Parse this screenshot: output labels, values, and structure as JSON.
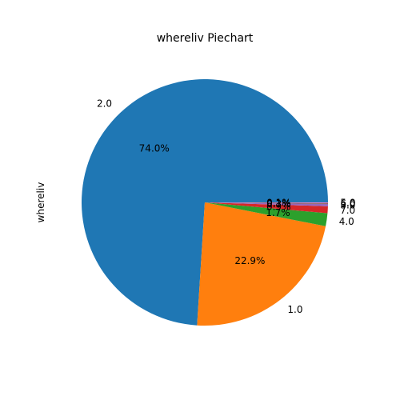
{
  "chart_data": {
    "type": "pie",
    "title": "whereliv Piechart",
    "ylabel": "whereliv",
    "start_angle_deg": 0,
    "direction": "counterclockwise",
    "legend": "none",
    "slices": [
      {
        "label": "2.0",
        "value": 74.0,
        "pct_label": "74.0%",
        "color": "#1f77b4"
      },
      {
        "label": "1.0",
        "value": 22.9,
        "pct_label": "22.9%",
        "color": "#ff7f0e"
      },
      {
        "label": "4.0",
        "value": 1.7,
        "pct_label": "1.7%",
        "color": "#2ca02c"
      },
      {
        "label": "7.0",
        "value": 0.9,
        "pct_label": "0.9%",
        "color": "#d62728"
      },
      {
        "label": "3.0",
        "value": 0.3,
        "pct_label": "0.3%",
        "color": "#9467bd"
      },
      {
        "label": "6.0",
        "value": 0.1,
        "pct_label": "0.1%",
        "color": "#8c564b"
      },
      {
        "label": "5.0",
        "value": 0.1,
        "pct_label": "0.1%",
        "color": "#e377c2"
      }
    ]
  }
}
